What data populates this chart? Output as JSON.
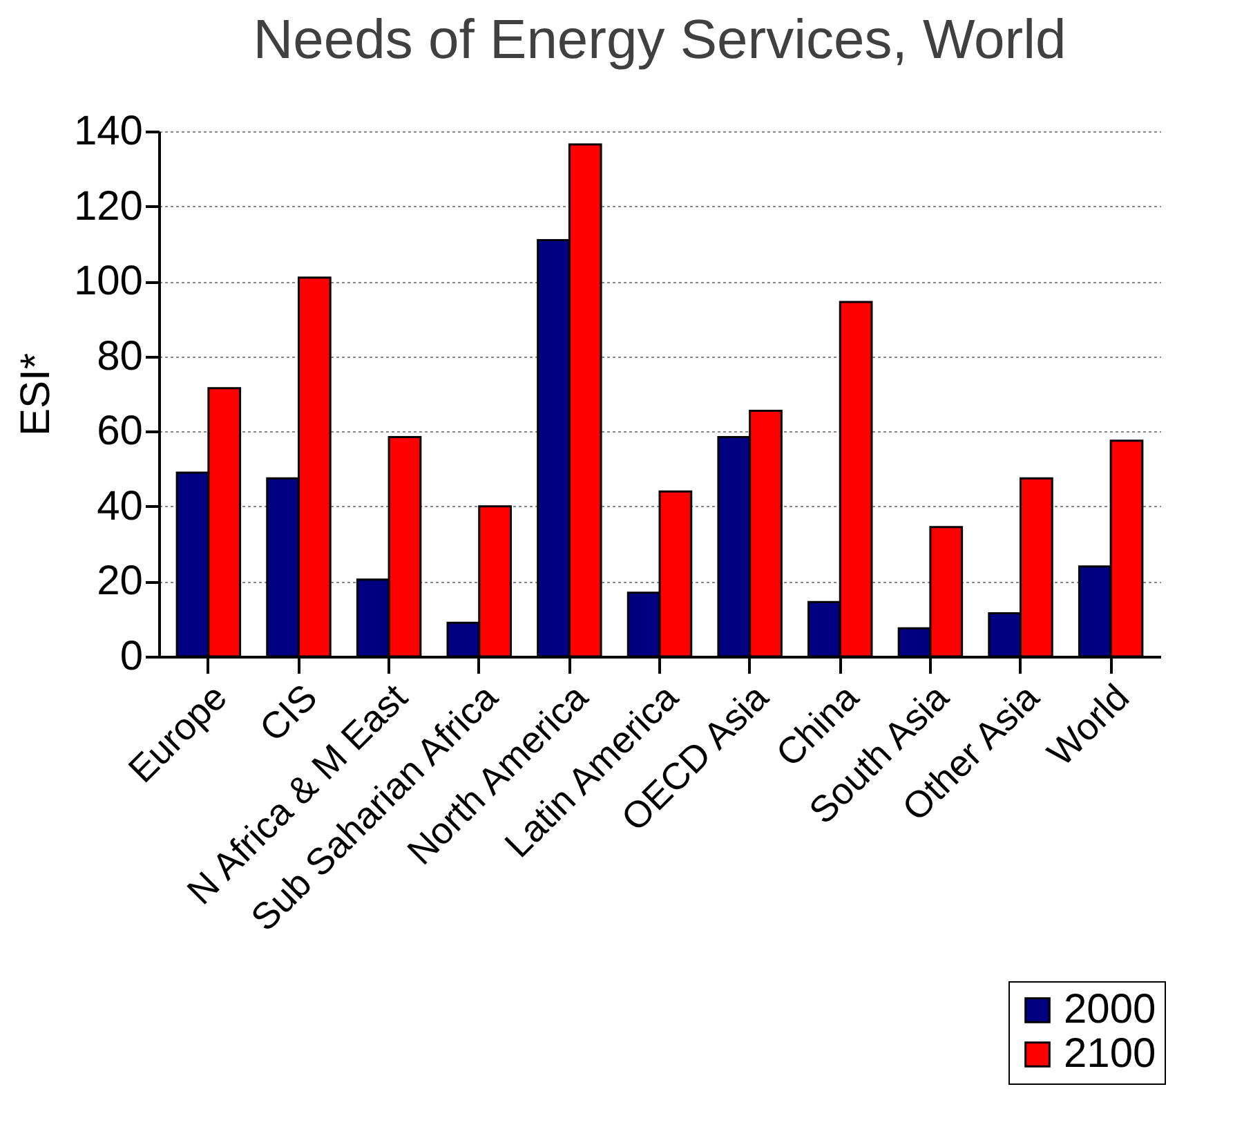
{
  "chart_data": {
    "type": "bar",
    "title": "Needs of Energy Services, World",
    "ylabel": "ESI*",
    "categories": [
      "Europe",
      "CIS",
      "N Africa & M East",
      "Sub Saharian Africa",
      "North America",
      "Latin America",
      "OECD Asia",
      "China",
      "South Asia",
      "Other Asia",
      "World"
    ],
    "series": [
      {
        "name": "2000",
        "color": "#000080",
        "values": [
          49,
          47.5,
          20.5,
          9,
          111,
          17,
          58.5,
          14.5,
          7.5,
          11.5,
          24
        ]
      },
      {
        "name": "2100",
        "color": "#ff0000",
        "values": [
          71.5,
          101,
          58.5,
          40,
          136.5,
          44,
          65.5,
          94.5,
          34.5,
          47.5,
          57.5
        ]
      }
    ],
    "ylim": [
      0,
      140
    ],
    "yticks": [
      0,
      20,
      40,
      60,
      80,
      100,
      120,
      140
    ],
    "grid": "y",
    "legend": "bottom right"
  }
}
